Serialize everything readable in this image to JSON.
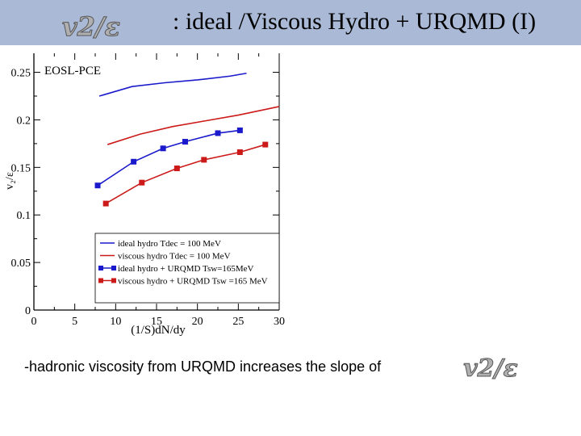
{
  "slide": {
    "title_suffix": ":  ideal /Viscous Hydro + URQMD (I)",
    "logo_text": "v2/ε",
    "bottom_text": "-hadronic viscosity from URQMD increases the slope of"
  },
  "chart_data": {
    "type": "line",
    "title": "EOSL-PCE",
    "xlabel": "(1/S)dN/dy",
    "ylabel": "v₂/ε",
    "xlim": [
      0,
      30
    ],
    "ylim": [
      0,
      0.27
    ],
    "x_ticks": [
      "0",
      "5",
      "10",
      "15",
      "20",
      "25",
      "30"
    ],
    "y_ticks": [
      "0",
      "0.05",
      "0.1",
      "0.15",
      "0.2",
      "0.25"
    ],
    "legend_position": "bottom-right",
    "series": [
      {
        "name": "ideal hydro Tdec = 100 MeV",
        "color": "#1a1acc",
        "marker": "none",
        "x": [
          8,
          12,
          16,
          20,
          24,
          26
        ],
        "y": [
          0.225,
          0.235,
          0.239,
          0.242,
          0.246,
          0.249
        ]
      },
      {
        "name": "viscous hydro Tdec = 100 MeV",
        "color": "#cc1a1a",
        "marker": "none",
        "x": [
          9,
          13,
          17,
          21,
          25,
          30
        ],
        "y": [
          0.174,
          0.185,
          0.193,
          0.199,
          0.205,
          0.214
        ]
      },
      {
        "name": "ideal hydro + URQMD Tsw=165MeV",
        "color": "#1a1acc",
        "marker": "square",
        "x": [
          7.8,
          12.2,
          15.8,
          18.5,
          22.5,
          25.2
        ],
        "y": [
          0.131,
          0.156,
          0.17,
          0.177,
          0.186,
          0.189
        ]
      },
      {
        "name": "viscous hydro + URQMD Tsw =165 MeV",
        "color": "#cc1a1a",
        "marker": "square",
        "x": [
          8.8,
          13.2,
          17.5,
          20.8,
          25.2,
          28.3
        ],
        "y": [
          0.112,
          0.134,
          0.149,
          0.158,
          0.166,
          0.174
        ]
      }
    ]
  }
}
